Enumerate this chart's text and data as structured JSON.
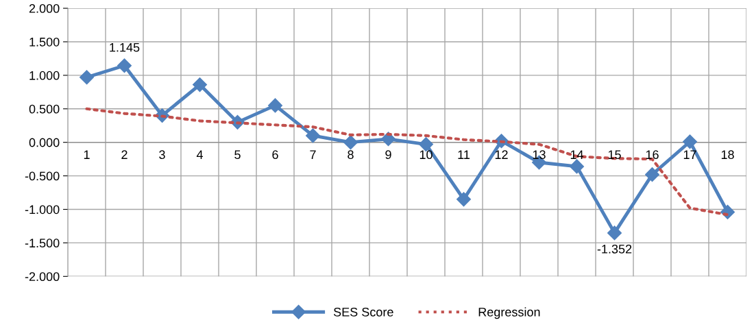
{
  "chart_data": {
    "type": "line",
    "categories": [
      "1",
      "2",
      "3",
      "4",
      "5",
      "6",
      "7",
      "8",
      "9",
      "10",
      "11",
      "12",
      "13",
      "14",
      "15",
      "16",
      "17",
      "18"
    ],
    "series": [
      {
        "name": "SES Score",
        "color": "#4f81bd",
        "marker": "diamond",
        "line_style": "solid",
        "values": [
          0.97,
          1.145,
          0.4,
          0.86,
          0.3,
          0.55,
          0.1,
          0.0,
          0.05,
          -0.03,
          -0.85,
          0.02,
          -0.3,
          -0.36,
          -1.352,
          -0.48,
          0.01,
          -1.04
        ],
        "value_labels": [
          null,
          "1.145",
          null,
          null,
          null,
          null,
          null,
          null,
          null,
          null,
          null,
          null,
          null,
          null,
          "-1.352",
          null,
          null,
          null
        ]
      },
      {
        "name": "Regression",
        "color": "#c0504d",
        "marker": "none",
        "line_style": "dotted",
        "values": [
          0.5,
          0.43,
          0.39,
          0.32,
          0.29,
          0.26,
          0.23,
          0.11,
          0.12,
          0.1,
          0.04,
          0.01,
          -0.03,
          -0.21,
          -0.24,
          -0.25,
          -0.98,
          -1.08
        ]
      }
    ],
    "ylim": [
      -2,
      2
    ],
    "yticks": [
      {
        "value": -2,
        "label": "-2.000"
      },
      {
        "value": -1.5,
        "label": "-1.500"
      },
      {
        "value": -1,
        "label": "-1.000"
      },
      {
        "value": -0.5,
        "label": "-0.500"
      },
      {
        "value": 0,
        "label": "0.000"
      },
      {
        "value": 0.5,
        "label": "0.500"
      },
      {
        "value": 1,
        "label": "1.000"
      },
      {
        "value": 1.5,
        "label": "1.500"
      },
      {
        "value": 2,
        "label": "2.000"
      }
    ],
    "grid": true,
    "legend": "bottom"
  }
}
